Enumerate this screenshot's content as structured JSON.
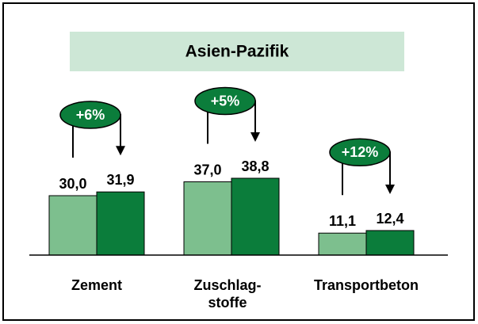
{
  "chart_data": {
    "type": "bar",
    "title": "Asien-Pazifik",
    "categories": [
      "Zement",
      "Zuschlag-\nstoffe",
      "Transportbeton"
    ],
    "series": [
      {
        "color": "#7dbf8e",
        "values": [
          30.0,
          37.0,
          11.1
        ],
        "value_labels": [
          "30,0",
          "37,0",
          "11,1"
        ]
      },
      {
        "color": "#0b7d3b",
        "values": [
          31.9,
          38.8,
          12.4
        ],
        "value_labels": [
          "31,9",
          "38,8",
          "12,4"
        ]
      }
    ],
    "annotations": [
      "+6%",
      "+5%",
      "+12%"
    ],
    "ylim": [
      0,
      100
    ]
  }
}
